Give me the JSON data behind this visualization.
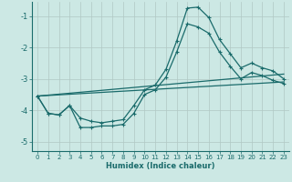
{
  "title": "",
  "xlabel": "Humidex (Indice chaleur)",
  "ylabel": "",
  "bg_color": "#cce8e4",
  "grid_color": "#b0c8c4",
  "line_color": "#1a6b6b",
  "xlim": [
    -0.5,
    23.5
  ],
  "ylim": [
    -5.3,
    -0.55
  ],
  "yticks": [
    -5,
    -4,
    -3,
    -2,
    -1
  ],
  "xticks": [
    0,
    1,
    2,
    3,
    4,
    5,
    6,
    7,
    8,
    9,
    10,
    11,
    12,
    13,
    14,
    15,
    16,
    17,
    18,
    19,
    20,
    21,
    22,
    23
  ],
  "series1_x": [
    0,
    1,
    2,
    3,
    4,
    5,
    6,
    7,
    8,
    9,
    10,
    11,
    12,
    13,
    14,
    15,
    16,
    17,
    18,
    19,
    20,
    21,
    22,
    23
  ],
  "series1_y": [
    -3.55,
    -4.1,
    -4.15,
    -3.85,
    -4.25,
    -4.35,
    -4.4,
    -4.35,
    -4.3,
    -3.85,
    -3.35,
    -3.2,
    -2.7,
    -1.8,
    -0.75,
    -0.72,
    -1.05,
    -1.75,
    -2.2,
    -2.65,
    -2.5,
    -2.65,
    -2.75,
    -3.0
  ],
  "series2_x": [
    0,
    1,
    2,
    3,
    4,
    5,
    6,
    7,
    8,
    9,
    10,
    11,
    12,
    13,
    14,
    15,
    16,
    17,
    18,
    19,
    20,
    21,
    22,
    23
  ],
  "series2_y": [
    -3.55,
    -4.1,
    -4.15,
    -3.85,
    -4.55,
    -4.55,
    -4.5,
    -4.5,
    -4.45,
    -4.1,
    -3.5,
    -3.35,
    -2.95,
    -2.15,
    -1.25,
    -1.35,
    -1.55,
    -2.15,
    -2.6,
    -3.0,
    -2.8,
    -2.9,
    -3.05,
    -3.15
  ],
  "series3_x": [
    0,
    23
  ],
  "series3_y": [
    -3.55,
    -2.85
  ],
  "series4_x": [
    0,
    23
  ],
  "series4_y": [
    -3.55,
    -3.1
  ]
}
